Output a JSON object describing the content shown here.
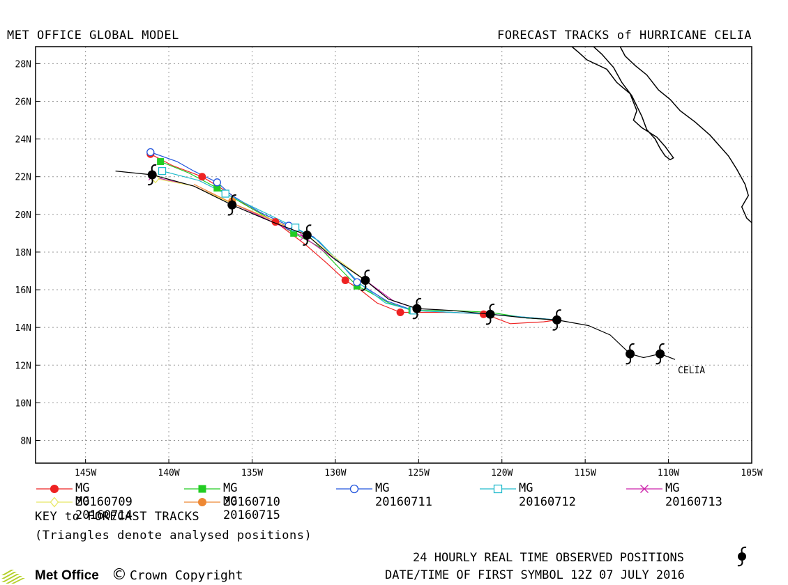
{
  "header": {
    "left_title": "MET OFFICE GLOBAL MODEL",
    "right_title": "FORECAST TRACKS of HURRICANE CELIA"
  },
  "map": {
    "lon_ticks": [
      "145W",
      "140W",
      "135W",
      "130W",
      "125W",
      "120W",
      "115W",
      "110W",
      "105W"
    ],
    "lat_ticks": [
      "28N",
      "26N",
      "24N",
      "22N",
      "20N",
      "18N",
      "16N",
      "14N",
      "12N",
      "10N",
      "8N"
    ],
    "storm_label": "CELIA",
    "extent": {
      "lon": [
        -148,
        -105
      ],
      "lat": [
        6.8,
        28.9
      ]
    }
  },
  "observed_track": {
    "line_lonlat": [
      [
        -143.2,
        22.3
      ],
      [
        -141.0,
        22.1
      ],
      [
        -138.5,
        21.5
      ],
      [
        -136.2,
        20.5
      ],
      [
        -133.8,
        19.6
      ],
      [
        -131.7,
        18.9
      ],
      [
        -130,
        17.6
      ],
      [
        -128.2,
        16.5
      ],
      [
        -126.8,
        15.5
      ],
      [
        -125.1,
        15.0
      ],
      [
        -123,
        14.9
      ],
      [
        -120.7,
        14.7
      ],
      [
        -118.5,
        14.5
      ],
      [
        -116.7,
        14.4
      ],
      [
        -114.8,
        14.1
      ],
      [
        -113.5,
        13.6
      ],
      [
        -112.3,
        12.6
      ],
      [
        -111.5,
        12.4
      ],
      [
        -110.5,
        12.6
      ],
      [
        -109.6,
        12.3
      ]
    ],
    "symbols_lonlat": [
      [
        -110.5,
        12.6
      ],
      [
        -112.3,
        12.6
      ],
      [
        -116.7,
        14.4
      ],
      [
        -120.7,
        14.7
      ],
      [
        -125.1,
        15.0
      ],
      [
        -128.2,
        16.5
      ],
      [
        -131.7,
        18.9
      ],
      [
        -136.2,
        20.5
      ],
      [
        -141.0,
        22.1
      ]
    ]
  },
  "forecast_tracks": [
    {
      "name": "MG 20160709",
      "color": "#ee2222",
      "marker": "filled-circle",
      "track": [
        [
          -116.7,
          14.4
        ],
        [
          -117.5,
          14.3
        ],
        [
          -119.5,
          14.2
        ],
        [
          -121,
          14.7
        ],
        [
          -123,
          14.8
        ],
        [
          -125,
          14.8
        ],
        [
          -126.1,
          14.8
        ],
        [
          -127.5,
          15.3
        ],
        [
          -128.5,
          16.0
        ],
        [
          -129.4,
          16.5
        ],
        [
          -130.5,
          17.4
        ],
        [
          -131.8,
          18.4
        ],
        [
          -133.6,
          19.6
        ],
        [
          -135.2,
          20.4
        ],
        [
          -136.5,
          21.2
        ],
        [
          -138.0,
          22.0
        ],
        [
          -139.8,
          22.6
        ],
        [
          -141.1,
          23.2
        ]
      ],
      "markers": [
        [
          -121.1,
          14.7
        ],
        [
          -126.1,
          14.8
        ],
        [
          -129.4,
          16.5
        ],
        [
          -133.6,
          19.6
        ],
        [
          -138.0,
          22.0
        ],
        [
          -141.1,
          23.2
        ]
      ]
    },
    {
      "name": "MG 20160710",
      "color": "#22cc22",
      "marker": "filled-square",
      "track": [
        [
          -116.7,
          14.4
        ],
        [
          -118.5,
          14.5
        ],
        [
          -120.7,
          14.8
        ],
        [
          -123,
          14.9
        ],
        [
          -125.4,
          14.9
        ],
        [
          -126.8,
          15.3
        ],
        [
          -128.0,
          15.9
        ],
        [
          -128.7,
          16.2
        ],
        [
          -129.6,
          17.0
        ],
        [
          -131.0,
          18.3
        ],
        [
          -132.5,
          19.0
        ],
        [
          -134.0,
          19.8
        ],
        [
          -135.6,
          20.6
        ],
        [
          -137.1,
          21.4
        ],
        [
          -138.8,
          22.2
        ],
        [
          -140.5,
          22.8
        ]
      ],
      "markers": [
        [
          -125.4,
          14.9
        ],
        [
          -128.7,
          16.2
        ],
        [
          -132.5,
          19.0
        ],
        [
          -137.1,
          21.4
        ],
        [
          -140.5,
          22.8
        ]
      ]
    },
    {
      "name": "MG 20160711",
      "color": "#2255dd",
      "marker": "open-circle",
      "track": [
        [
          -116.7,
          14.4
        ],
        [
          -120.7,
          14.7
        ],
        [
          -125.3,
          14.9
        ],
        [
          -126.9,
          15.4
        ],
        [
          -128.7,
          16.4
        ],
        [
          -129.9,
          17.6
        ],
        [
          -131.3,
          18.8
        ],
        [
          -132.8,
          19.4
        ],
        [
          -134.5,
          20.1
        ],
        [
          -136.2,
          21.0
        ],
        [
          -137.1,
          21.7
        ],
        [
          -138.5,
          22.3
        ],
        [
          -139.5,
          22.8
        ],
        [
          -141.1,
          23.3
        ]
      ],
      "markers": [
        [
          -128.7,
          16.4
        ],
        [
          -132.8,
          19.4
        ],
        [
          -137.1,
          21.7
        ],
        [
          -141.1,
          23.3
        ]
      ]
    },
    {
      "name": "MG 20160712",
      "color": "#22bbcc",
      "marker": "open-square",
      "track": [
        [
          -116.7,
          14.4
        ],
        [
          -120.7,
          14.7
        ],
        [
          -125.3,
          14.9
        ],
        [
          -127.0,
          15.3
        ],
        [
          -128.5,
          16.3
        ],
        [
          -129.7,
          17.4
        ],
        [
          -131.0,
          18.6
        ],
        [
          -132.4,
          19.3
        ],
        [
          -134.5,
          20.2
        ],
        [
          -136.6,
          21.1
        ],
        [
          -138.2,
          21.8
        ],
        [
          -140.4,
          22.3
        ]
      ],
      "markers": [
        [
          -125.3,
          14.9
        ],
        [
          -132.4,
          19.3
        ],
        [
          -136.6,
          21.1
        ],
        [
          -140.4,
          22.3
        ]
      ]
    },
    {
      "name": "MG 20160713",
      "color": "#cc22aa",
      "marker": "x",
      "track": [
        [
          -125.1,
          15.0
        ],
        [
          -126.5,
          15.4
        ],
        [
          -128.2,
          16.5
        ],
        [
          -130,
          17.6
        ],
        [
          -131.9,
          18.8
        ],
        [
          -134,
          19.7
        ],
        [
          -136.2,
          20.6
        ],
        [
          -138.5,
          21.5
        ],
        [
          -141.0,
          22.0
        ]
      ],
      "markers": [
        [
          -131.9,
          18.8
        ],
        [
          -141.0,
          22.0
        ]
      ]
    },
    {
      "name": "MG 20160714",
      "color": "#e8e866",
      "marker": "open-diamond",
      "track": [
        [
          -128.2,
          16.5
        ],
        [
          -130,
          17.7
        ],
        [
          -131.7,
          18.9
        ],
        [
          -134,
          19.8
        ],
        [
          -136.5,
          20.7
        ],
        [
          -138.5,
          21.5
        ],
        [
          -140.8,
          21.9
        ]
      ],
      "markers": [
        [
          -140.8,
          21.9
        ]
      ]
    },
    {
      "name": "MG 20160715",
      "color": "#ee8833",
      "marker": "filled-circle",
      "track": [
        [
          -131.7,
          18.9
        ],
        [
          -133.8,
          19.7
        ],
        [
          -136.2,
          20.6
        ],
        [
          -138.5,
          21.6
        ]
      ],
      "markers": [
        [
          -136.2,
          20.7
        ]
      ]
    }
  ],
  "coastline_lonlat": [
    [
      [
        -115.8,
        28.9
      ],
      [
        -115.4,
        28.6
      ],
      [
        -114.9,
        28.2
      ],
      [
        -113.7,
        27.7
      ],
      [
        -113.1,
        27.0
      ],
      [
        -112.3,
        26.4
      ],
      [
        -111.9,
        25.5
      ],
      [
        -112.1,
        25.0
      ],
      [
        -111.6,
        24.6
      ],
      [
        -110.7,
        24.1
      ],
      [
        -110.2,
        23.6
      ],
      [
        -109.7,
        23.0
      ],
      [
        -109.9,
        22.9
      ],
      [
        -110.2,
        23.1
      ],
      [
        -110.5,
        23.5
      ],
      [
        -110.8,
        24.0
      ],
      [
        -111.3,
        24.5
      ],
      [
        -111.6,
        25.2
      ],
      [
        -112.2,
        26.3
      ],
      [
        -112.8,
        27.0
      ],
      [
        -113.3,
        27.8
      ],
      [
        -114.0,
        28.5
      ],
      [
        -114.5,
        28.9
      ]
    ],
    [
      [
        -112.9,
        28.9
      ],
      [
        -112.6,
        28.4
      ],
      [
        -112.0,
        27.9
      ],
      [
        -111.3,
        27.4
      ],
      [
        -110.6,
        26.6
      ],
      [
        -109.9,
        26.1
      ],
      [
        -109.3,
        25.5
      ],
      [
        -108.4,
        24.9
      ],
      [
        -107.5,
        24.2
      ],
      [
        -106.9,
        23.6
      ],
      [
        -106.4,
        23.1
      ],
      [
        -105.9,
        22.4
      ],
      [
        -105.4,
        21.6
      ],
      [
        -105.2,
        21.0
      ],
      [
        -105.6,
        20.4
      ],
      [
        -105.3,
        19.8
      ],
      [
        -104.8,
        19.4
      ]
    ]
  ],
  "legend": {
    "key_title": "KEY to FORECAST TRACKS",
    "key_note": "(Triangles denote analysed positions)"
  },
  "footer": {
    "observed_label": "24 HOURLY REAL TIME OBSERVED POSITIONS",
    "datetime_label": "DATE/TIME OF FIRST SYMBOL 12Z 07 JULY 2016",
    "brand": "Met Office",
    "copyright_symbol": "©",
    "copyright": "Crown Copyright"
  }
}
